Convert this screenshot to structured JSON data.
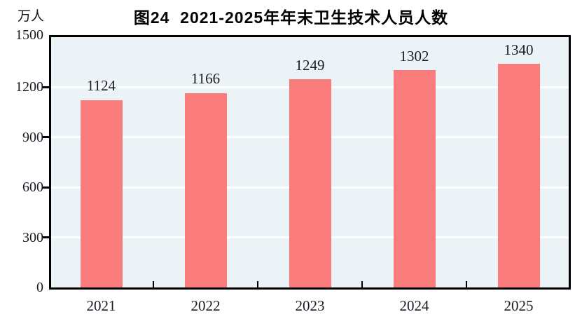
{
  "chart": {
    "title": "图24  2021-2025年年末卫生技术人员人数",
    "unit_label": "万人"
  },
  "chart_data": {
    "type": "bar",
    "title": "图24  2021-2025年年末卫生技术人员人数",
    "unit": "万人",
    "categories": [
      "2021",
      "2022",
      "2023",
      "2024",
      "2025"
    ],
    "values": [
      1124,
      1166,
      1249,
      1302,
      1340
    ],
    "xlabel": "",
    "ylabel": "万人",
    "ylim": [
      0,
      1500
    ],
    "yticks": [
      0,
      300,
      600,
      900,
      1200,
      1500
    ],
    "grid": true,
    "legend": false,
    "colors": {
      "bar": "#FB7C7C",
      "plot_background": "#EBF3F6",
      "gridline": "#FFFFFF",
      "frame": "#000000",
      "text": "#1b1b26"
    }
  }
}
